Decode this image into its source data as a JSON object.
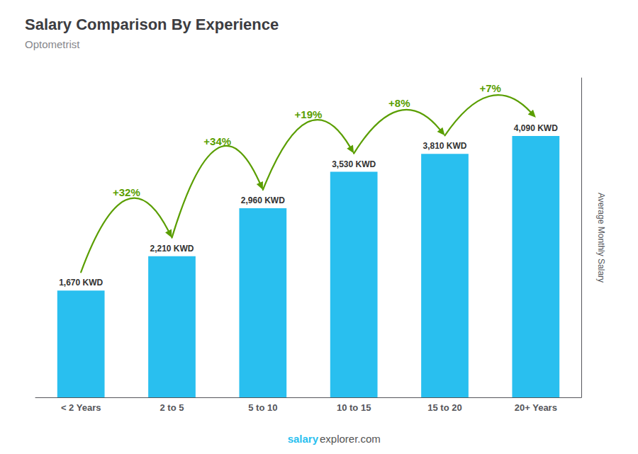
{
  "chart_data": {
    "type": "bar",
    "title": "Salary Comparison By Experience",
    "subtitle": "Optometrist",
    "ylabel": "Average Monthly Salary",
    "categories": [
      "< 2 Years",
      "2 to 5",
      "5 to 10",
      "10 to 15",
      "15 to 20",
      "20+ Years"
    ],
    "values": [
      1670,
      2210,
      2960,
      3530,
      3810,
      4090
    ],
    "value_labels": [
      "1,670 KWD",
      "2,210 KWD",
      "2,960 KWD",
      "3,530 KWD",
      "3,810 KWD",
      "4,090 KWD"
    ],
    "data_labels": true,
    "color": "#29BFEF",
    "ylim": [
      0,
      5000
    ],
    "grid": false,
    "tick_labels": "x",
    "annotations": [
      "+32%",
      "+34%",
      "+19%",
      "+8%",
      "+7%"
    ],
    "watermark": [
      "salary",
      "explorer.com"
    ]
  }
}
